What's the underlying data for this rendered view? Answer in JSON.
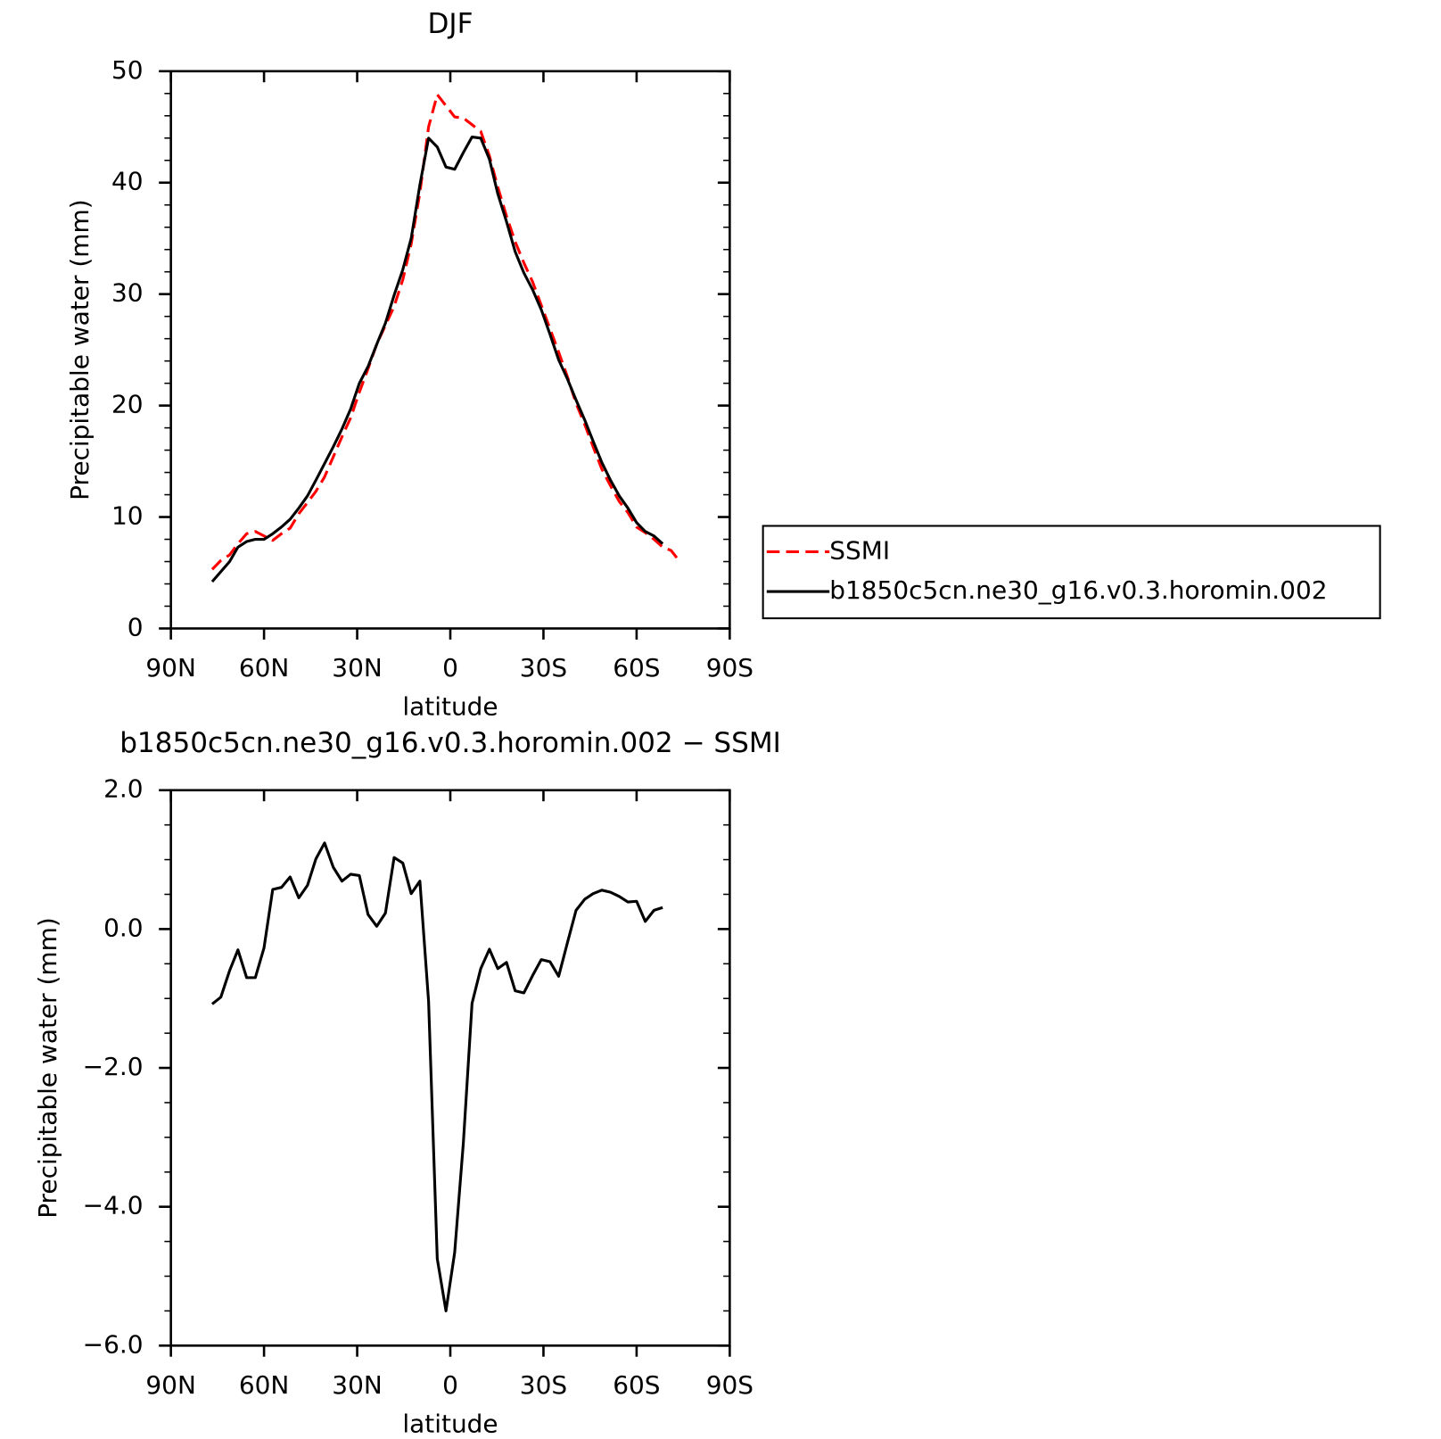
{
  "chart_data": [
    {
      "type": "line",
      "title": "DJF",
      "xlabel": "latitude",
      "ylabel": "Precipitable water (mm)",
      "x": [
        76.7,
        73.9,
        71.1,
        68.4,
        65.6,
        62.8,
        60.0,
        57.2,
        54.4,
        51.6,
        48.8,
        46.0,
        43.3,
        40.5,
        37.7,
        34.9,
        32.1,
        29.3,
        26.5,
        23.7,
        20.9,
        18.1,
        15.3,
        12.6,
        9.8,
        7.0,
        4.2,
        1.4,
        -1.4,
        -4.2,
        -7.0,
        -9.8,
        -12.6,
        -15.3,
        -18.1,
        -20.9,
        -23.7,
        -26.5,
        -29.3,
        -32.1,
        -34.9,
        -37.7,
        -40.5,
        -43.3,
        -46.0,
        -48.8,
        -51.6,
        -54.4,
        -57.2,
        -60.0,
        -62.8,
        -65.6,
        -68.4,
        -71.1,
        -73.9
      ],
      "series": [
        {
          "name": "SSMI",
          "color": "#ff0000",
          "dashed": true,
          "values": [
            5.3,
            6.1,
            6.6,
            7.6,
            8.5,
            8.7,
            8.3,
            7.9,
            8.5,
            9.0,
            10.3,
            11.3,
            12.3,
            13.6,
            15.4,
            17.2,
            18.9,
            21.2,
            23.3,
            25.5,
            27.2,
            28.9,
            31.3,
            34.5,
            39.1,
            45.0,
            47.9,
            46.9,
            45.9,
            45.8,
            45.2,
            44.6,
            42.4,
            39.6,
            37.0,
            34.7,
            32.8,
            31.1,
            29.0,
            26.9,
            24.8,
            22.6,
            20.2,
            18.3,
            16.3,
            14.3,
            12.8,
            11.4,
            10.4,
            9.1,
            8.6,
            8.0,
            7.3,
            7.0,
            6.0
          ]
        },
        {
          "name": "b1850c5cn.ne30_g16.v0.3.horomin.002",
          "color": "#000000",
          "dashed": false,
          "values": [
            4.2,
            5.1,
            6.0,
            7.3,
            7.8,
            8.0,
            8.0,
            8.5,
            9.1,
            9.8,
            10.8,
            11.9,
            13.3,
            14.8,
            16.3,
            17.9,
            19.7,
            22.0,
            23.5,
            25.5,
            27.4,
            29.9,
            32.2,
            35.0,
            39.8,
            44.0,
            43.2,
            41.4,
            41.2,
            42.7,
            44.1,
            44.0,
            42.1,
            39.0,
            36.5,
            33.8,
            31.9,
            30.4,
            28.6,
            26.4,
            24.1,
            22.4,
            20.5,
            18.7,
            16.8,
            14.9,
            13.3,
            11.9,
            10.8,
            9.5,
            8.7,
            8.3,
            7.6,
            null,
            null
          ]
        }
      ],
      "xlim": [
        90,
        -90
      ],
      "xticks": [
        {
          "value": 90,
          "label": "90N"
        },
        {
          "value": 60,
          "label": "60N"
        },
        {
          "value": 30,
          "label": "30N"
        },
        0,
        {
          "value": -30,
          "label": "30S"
        },
        {
          "value": -60,
          "label": "60S"
        },
        {
          "value": -90,
          "label": "90S"
        }
      ],
      "ylim": [
        0,
        50
      ],
      "yticks": [
        0,
        10,
        20,
        30,
        40,
        50
      ],
      "yminor": [
        2,
        4,
        6,
        8,
        12,
        14,
        16,
        18,
        22,
        24,
        26,
        28,
        32,
        34,
        36,
        38,
        42,
        44,
        46,
        48
      ],
      "legend": "outside-right"
    },
    {
      "type": "line",
      "title": "b1850c5cn.ne30_g16.v0.3.horomin.002 − SSMI",
      "xlabel": "latitude",
      "ylabel": "Precipitable water (mm)",
      "x": [
        76.7,
        73.9,
        71.1,
        68.4,
        65.6,
        62.8,
        60.0,
        57.2,
        54.4,
        51.6,
        48.8,
        46.0,
        43.3,
        40.5,
        37.7,
        34.9,
        32.1,
        29.3,
        26.5,
        23.7,
        20.9,
        18.1,
        15.3,
        12.6,
        9.8,
        7.0,
        4.2,
        1.4,
        -1.4,
        -4.2,
        -7.0,
        -9.8,
        -12.6,
        -15.3,
        -18.1,
        -20.9,
        -23.7,
        -26.5,
        -29.3,
        -32.1,
        -34.9,
        -37.7,
        -40.5,
        -43.3,
        -46.0,
        -48.8,
        -51.6,
        -54.4,
        -57.2,
        -60.0,
        -62.8,
        -65.6,
        -68.4,
        -71.1,
        -73.9
      ],
      "series": [
        {
          "color": "#000000",
          "dashed": false,
          "values": [
            -1.08,
            -0.98,
            -0.6,
            -0.3,
            -0.7,
            -0.7,
            -0.27,
            0.57,
            0.6,
            0.75,
            0.45,
            0.63,
            1.01,
            1.24,
            0.89,
            0.69,
            0.79,
            0.77,
            0.21,
            0.04,
            0.23,
            1.03,
            0.95,
            0.51,
            0.69,
            -1.04,
            -4.75,
            -5.5,
            -4.66,
            -3.08,
            -1.07,
            -0.57,
            -0.29,
            -0.57,
            -0.48,
            -0.89,
            -0.92,
            -0.67,
            -0.44,
            -0.47,
            -0.68,
            -0.2,
            0.27,
            0.43,
            0.51,
            0.56,
            0.53,
            0.47,
            0.39,
            0.4,
            0.11,
            0.27,
            0.31,
            null,
            null
          ]
        }
      ],
      "xlim": [
        90,
        -90
      ],
      "xticks": [
        {
          "value": 90,
          "label": "90N"
        },
        {
          "value": 60,
          "label": "60N"
        },
        {
          "value": 30,
          "label": "30N"
        },
        0,
        {
          "value": -30,
          "label": "30S"
        },
        {
          "value": -60,
          "label": "60S"
        },
        {
          "value": -90,
          "label": "90S"
        }
      ],
      "ylim": [
        -6,
        2
      ],
      "yticks": [
        {
          "value": -6,
          "label": "−6.0"
        },
        {
          "value": -4,
          "label": "−4.0"
        },
        {
          "value": -2,
          "label": "−2.0"
        },
        {
          "value": 0,
          "label": "0.0"
        },
        {
          "value": 2,
          "label": "2.0"
        }
      ],
      "yminor": [
        -5.5,
        -5,
        -4.5,
        -3.5,
        -3,
        -2.5,
        -1.5,
        -1,
        -0.5,
        0.5,
        1,
        1.5
      ]
    }
  ]
}
